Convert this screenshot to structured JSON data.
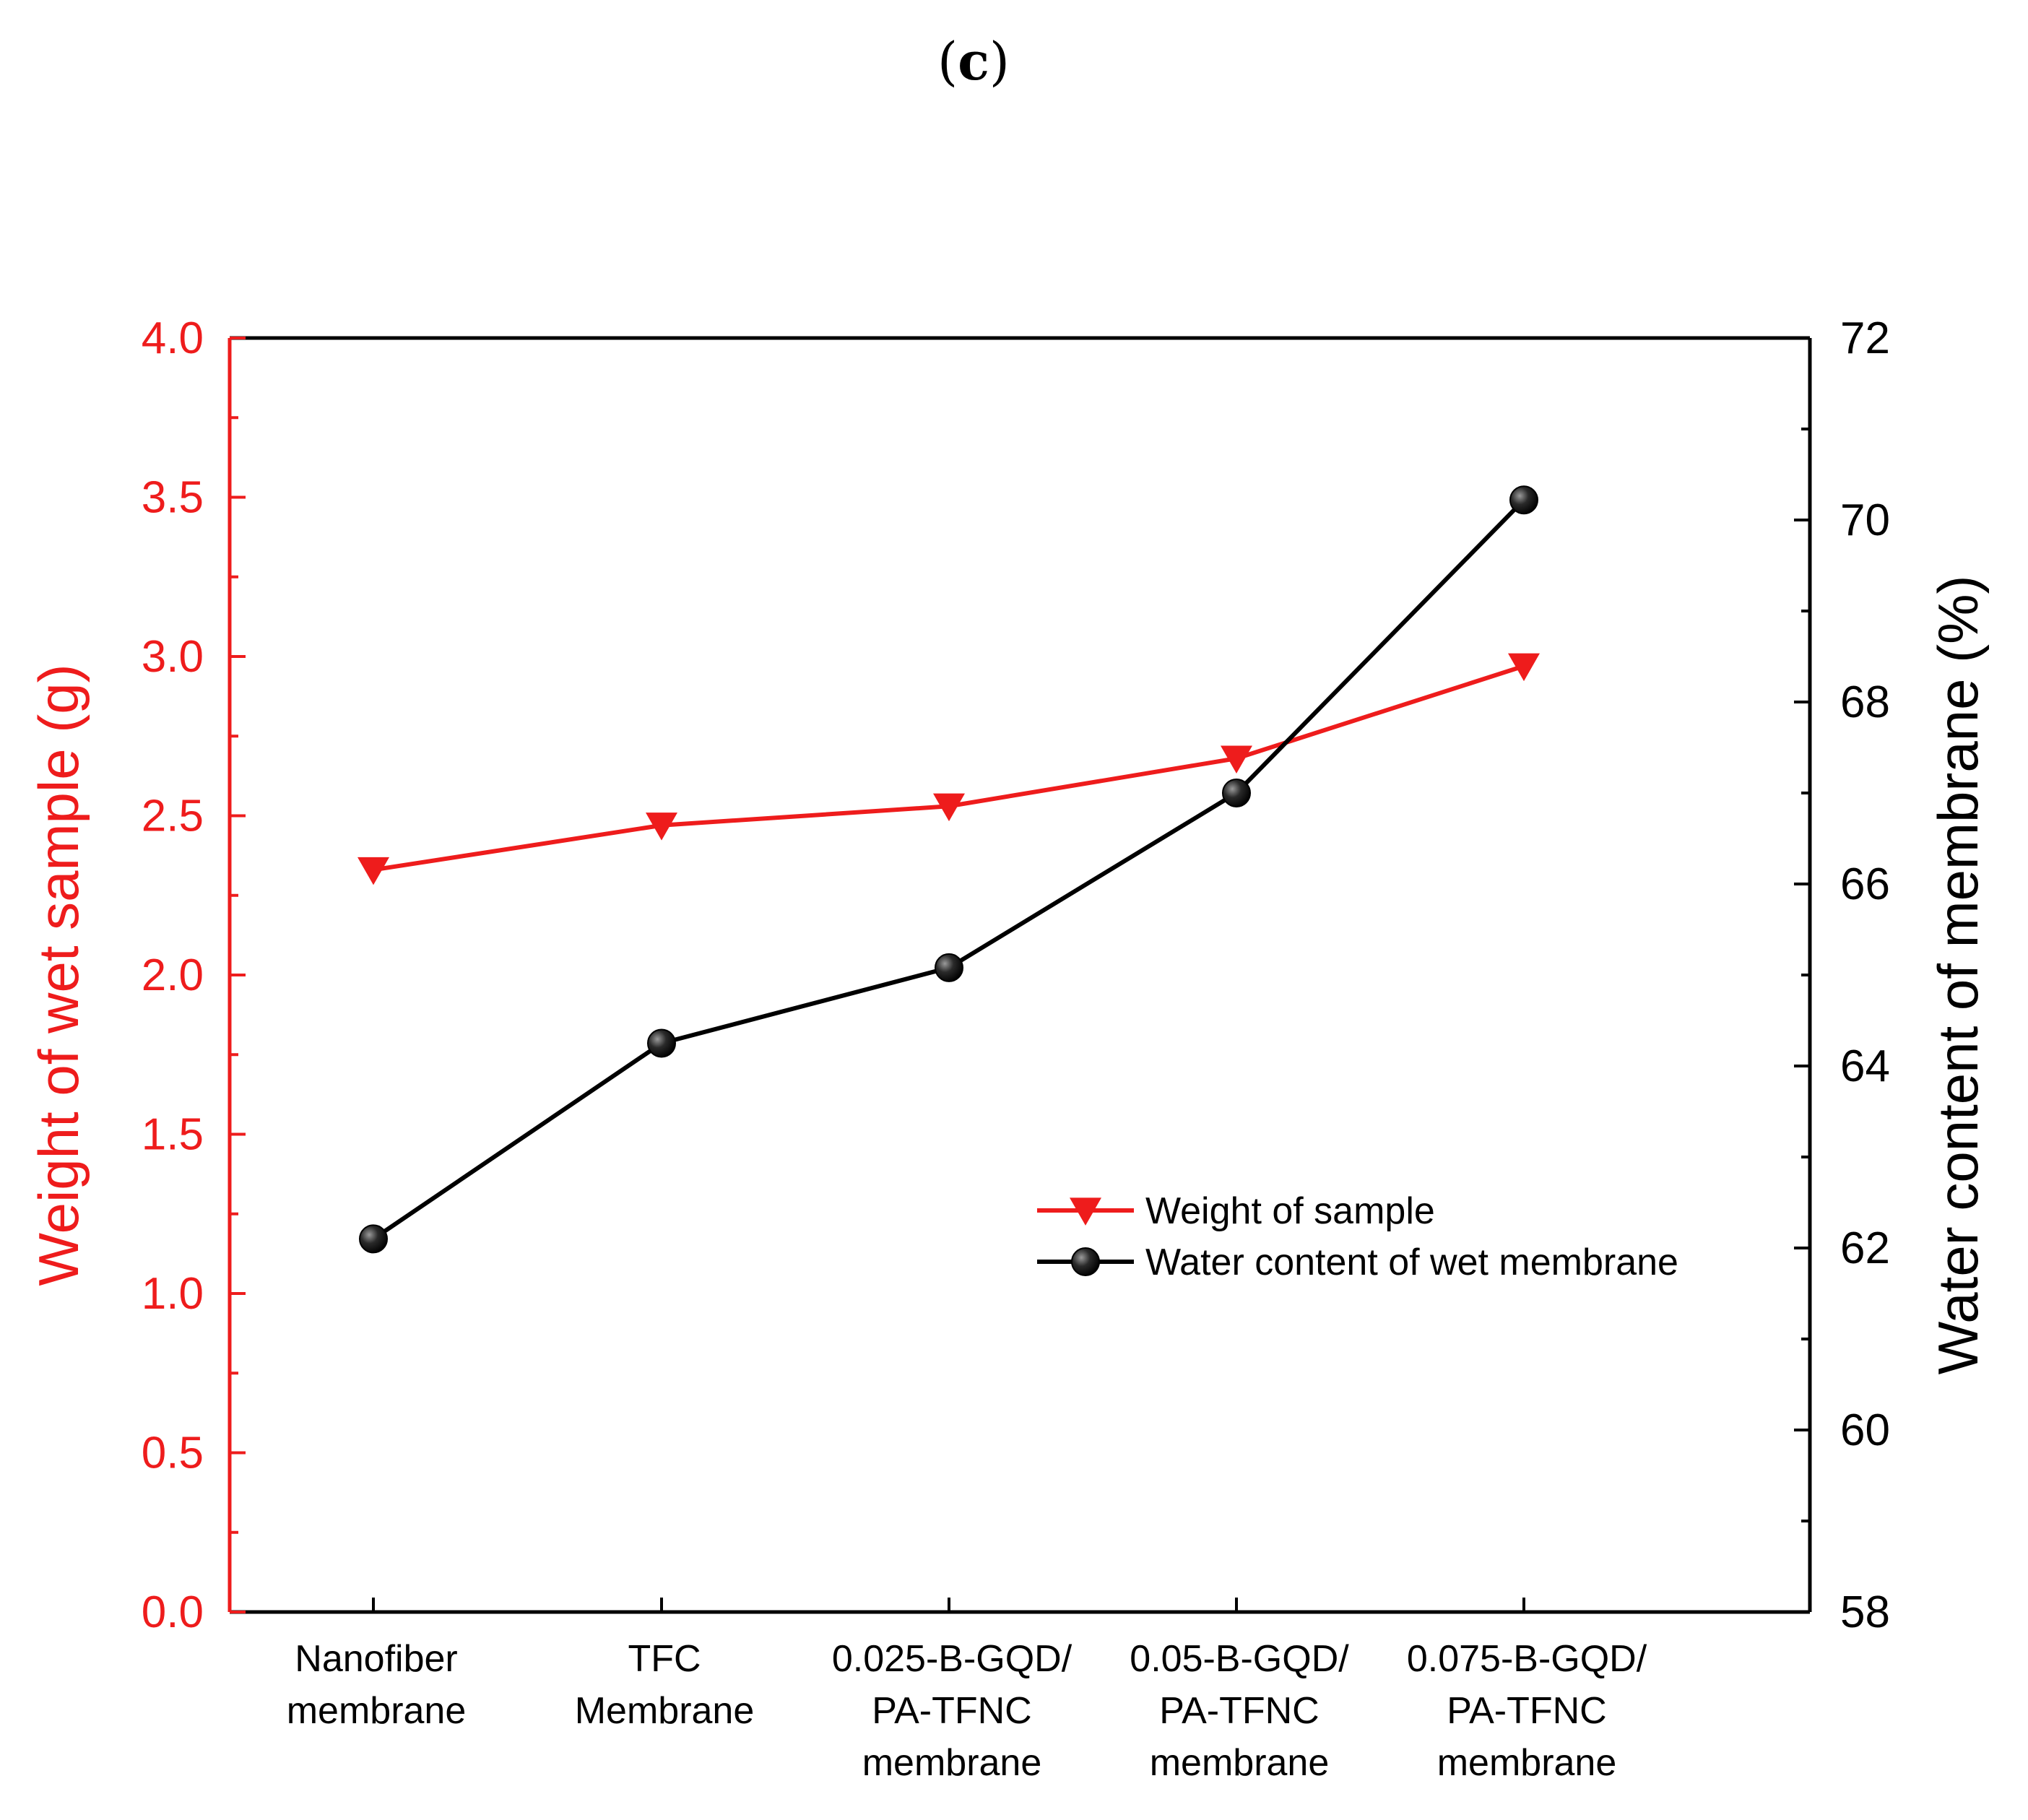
{
  "panel_label": {
    "open": "(",
    "letter": "c",
    "close": ")"
  },
  "colors": {
    "red": "#ee1c1c",
    "black": "#000000"
  },
  "chart_data": {
    "type": "line",
    "categories": [
      [
        "Nanofiber",
        "membrane"
      ],
      [
        "TFC",
        "Membrane"
      ],
      [
        "0.025-B-GQD/",
        "PA-TFNC",
        "membrane"
      ],
      [
        "0.05-B-GQD/",
        "PA-TFNC",
        "membrane"
      ],
      [
        "0.075-B-GQD/",
        "PA-TFNC",
        "membrane"
      ]
    ],
    "series": [
      {
        "name": "Weight of sample",
        "axis": "left",
        "marker": "triangle-down",
        "color": "#ee1c1c",
        "values": [
          2.33,
          2.47,
          2.53,
          2.68,
          2.97
        ]
      },
      {
        "name": "Water content of wet membrane",
        "axis": "right",
        "marker": "sphere",
        "color": "#000000",
        "values": [
          62.1,
          64.25,
          65.08,
          67.0,
          70.22
        ]
      }
    ],
    "y_left": {
      "label": "Weight of wet sample (g)",
      "range": [
        0,
        4
      ],
      "ticks": [
        "0.0",
        "0.5",
        "1.0",
        "1.5",
        "2.0",
        "2.5",
        "3.0",
        "3.5",
        "4.0"
      ]
    },
    "y_right": {
      "label": "Water content of membrane (%)",
      "range": [
        58,
        72
      ],
      "ticks": [
        "58",
        "60",
        "62",
        "64",
        "66",
        "68",
        "70",
        "72"
      ]
    },
    "legend": {
      "position": "lower-right",
      "entries": [
        "Weight of sample",
        "Water content of wet membrane"
      ]
    }
  }
}
